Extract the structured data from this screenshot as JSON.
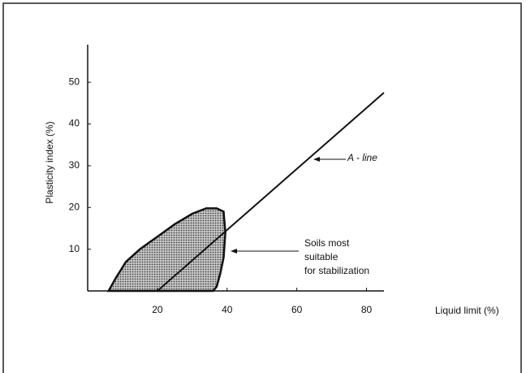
{
  "chart_data": {
    "type": "line",
    "x_label": "Liquid limit (%)",
    "y_label": "Plasticity index (%)",
    "xlim": [
      0,
      85
    ],
    "ylim": [
      0,
      59
    ],
    "xticks": [
      20,
      40,
      60,
      80
    ],
    "yticks": [
      10,
      20,
      30,
      40,
      50
    ],
    "series": [
      {
        "name": "A - line",
        "color": "#111111",
        "x": [
          20,
          85
        ],
        "values": [
          0,
          47.5
        ]
      }
    ],
    "region": {
      "color": "#9a9a9a",
      "x": [
        6,
        8,
        11,
        15,
        20,
        25,
        30,
        34,
        37,
        39,
        39.5,
        39,
        38,
        37,
        36
      ],
      "y": [
        0,
        3,
        7,
        10,
        13,
        16,
        18.5,
        19.8,
        19.8,
        19,
        14,
        8,
        4,
        1,
        0
      ]
    },
    "annotations": [
      {
        "lines": [
          "A - line"
        ]
      },
      {
        "lines": [
          "Soils most",
          "suitable",
          "for stabilization"
        ]
      }
    ]
  }
}
